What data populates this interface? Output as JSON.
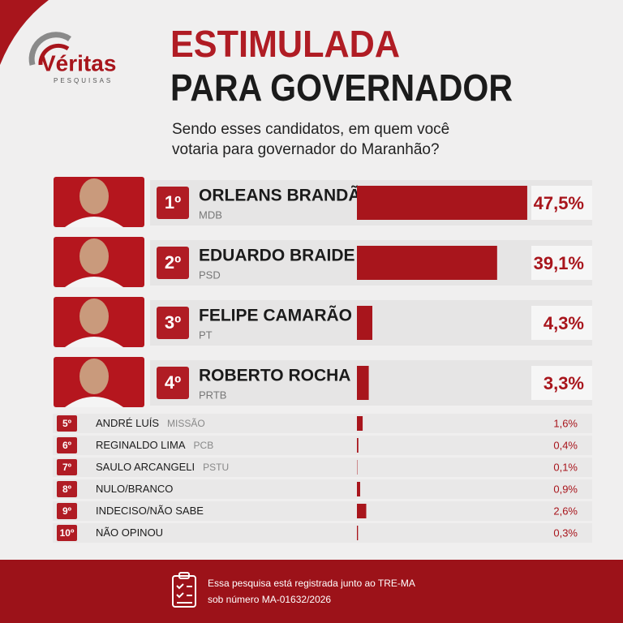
{
  "logo": {
    "name": "Véritas",
    "tagline": "PESQUISAS"
  },
  "chart_data": {
    "type": "bar",
    "title": [
      "ESTIMULADA",
      "PARA GOVERNADOR"
    ],
    "subtitle": [
      "Sendo esses candidatos, em quem você",
      "votaria para governador do Maranhão?"
    ],
    "ranks": [
      "1º",
      "2º",
      "3º",
      "4º",
      "5º",
      "6º",
      "7º",
      "8º",
      "9º",
      "10º"
    ],
    "categories": [
      "ORLEANS BRANDÃO",
      "EDUARDO BRAIDE",
      "FELIPE CAMARÃO",
      "ROBERTO ROCHA",
      "ANDRÉ LUÍS",
      "REGINALDO LIMA",
      "SAULO ARCANGELI",
      "NULO/BRANCO",
      "INDECISO/NÃO SABE",
      "NÃO OPINOU"
    ],
    "parties": [
      "MDB",
      "PSD",
      "PT",
      "PRTB",
      "MISSÃO",
      "PCB",
      "PSTU",
      null,
      null,
      null
    ],
    "values": [
      47.5,
      39.1,
      4.3,
      3.3,
      1.6,
      0.4,
      0.1,
      0.9,
      2.6,
      0.3
    ],
    "value_labels": [
      "47,5%",
      "39,1%",
      "4,3%",
      "3,3%",
      "1,6%",
      "0,4%",
      "0,1%",
      "0,9%",
      "2,6%",
      "0,3%"
    ],
    "color": "#a8151c"
  },
  "footer": [
    "Essa pesquisa está registrada junto ao TRE-MA",
    "sob número MA-01632/2026"
  ]
}
